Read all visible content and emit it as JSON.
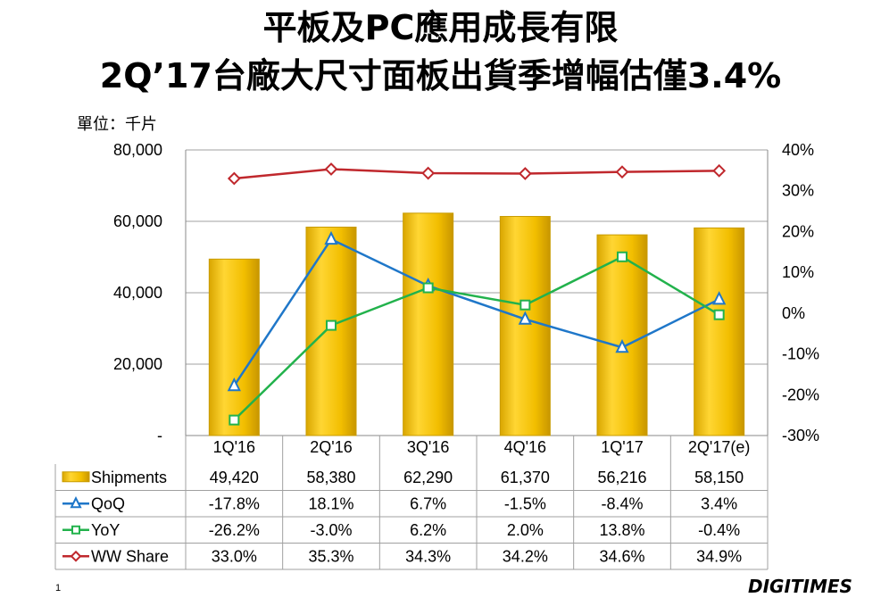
{
  "title_line1": "平板及PC應用成長有限",
  "title_line2": "2Q’17台廠大尺寸面板出貨季增幅估僅3.4%",
  "unit_label": "單位：千片",
  "page_number": "1",
  "logo_text": "DIGITIMES",
  "colors": {
    "bar": "#F2BE00",
    "bar_edge": "#C89B00",
    "qoq": "#1F77C9",
    "yoy": "#22B24C",
    "ww_share": "#C0282D",
    "grid": "#A0A0A0"
  },
  "chart_data": {
    "type": "bar",
    "categories": [
      "1Q'16",
      "2Q'16",
      "3Q'16",
      "4Q'16",
      "1Q'17",
      "2Q'17(e)"
    ],
    "left_axis": {
      "ticks": [
        "80,000",
        "60,000",
        "40,000",
        "20,000",
        "-"
      ],
      "ylim": [
        0,
        80000
      ]
    },
    "right_axis": {
      "ticks": [
        "40%",
        "30%",
        "20%",
        "10%",
        "0%",
        "-10%",
        "-20%",
        "-30%"
      ],
      "ylim": [
        -30,
        40
      ]
    },
    "bar_series": {
      "name": "Shipments",
      "values": [
        49420,
        58380,
        62290,
        61370,
        56216,
        58150
      ],
      "labels": [
        "49,420",
        "58,380",
        "62,290",
        "61,370",
        "56,216",
        "58,150"
      ]
    },
    "line_series": [
      {
        "name": "QoQ",
        "key": "qoq",
        "marker": "triangle",
        "values": [
          -17.8,
          18.1,
          6.7,
          -1.5,
          -8.4,
          3.4
        ],
        "labels": [
          "-17.8%",
          "18.1%",
          "6.7%",
          "-1.5%",
          "-8.4%",
          "3.4%"
        ]
      },
      {
        "name": "YoY",
        "key": "yoy",
        "marker": "square",
        "values": [
          -26.2,
          -3.0,
          6.2,
          2.0,
          13.8,
          -0.4
        ],
        "labels": [
          "-26.2%",
          "-3.0%",
          "6.2%",
          "2.0%",
          "13.8%",
          "-0.4%"
        ]
      },
      {
        "name": "WW Share",
        "key": "ww_share",
        "marker": "diamond",
        "values": [
          33.0,
          35.3,
          34.3,
          34.2,
          34.6,
          34.9
        ],
        "labels": [
          "33.0%",
          "35.3%",
          "34.3%",
          "34.2%",
          "34.6%",
          "34.9%"
        ]
      }
    ]
  }
}
